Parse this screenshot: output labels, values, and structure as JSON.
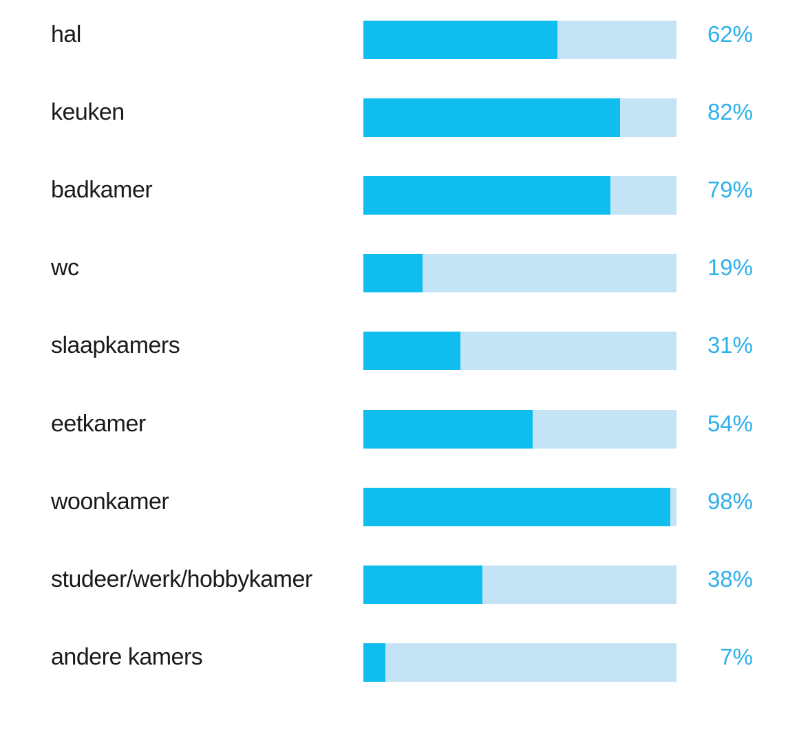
{
  "chart_data": {
    "type": "bar",
    "orientation": "horizontal",
    "categories": [
      "hal",
      "keuken",
      "badkamer",
      "wc",
      "slaapkamers",
      "eetkamer",
      "woonkamer",
      "studeer/werk/hobbykamer",
      "andere kamers"
    ],
    "values": [
      62,
      82,
      79,
      19,
      31,
      54,
      98,
      38,
      7
    ],
    "value_labels": [
      "62%",
      "82%",
      "79%",
      "19%",
      "31%",
      "54%",
      "98%",
      "38%",
      "7%"
    ],
    "xlim": [
      0,
      100
    ],
    "unit": "%",
    "grid": false,
    "legend": "none",
    "colors": {
      "fill": "#0fbdef",
      "track": "#c4e4f6",
      "value_label": "#2fb0ea",
      "category_label": "#1a1a1a"
    }
  }
}
